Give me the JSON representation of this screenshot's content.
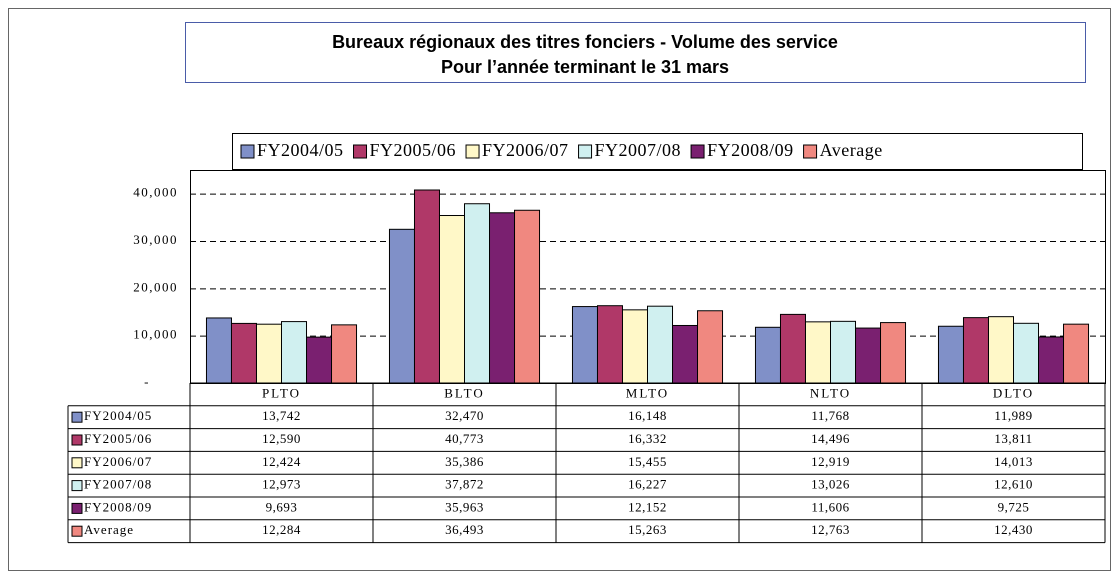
{
  "chart_data": {
    "type": "bar",
    "title": [
      "Bureaux régionaux des titres fonciers - Volume des service",
      "Pour l’année terminant le 31 mars"
    ],
    "categories": [
      "PLTO",
      "BLTO",
      "MLTO",
      "NLTO",
      "DLTO"
    ],
    "series": [
      {
        "name": "FY2004/05",
        "color": "#8090c8",
        "values": [
          13742,
          32470,
          16148,
          11768,
          11989
        ],
        "value_labels": [
          "13,742",
          "32,470",
          "16,148",
          "11,768",
          "11,989"
        ]
      },
      {
        "name": "FY2005/06",
        "color": "#b03868",
        "values": [
          12590,
          40773,
          16332,
          14496,
          13811
        ],
        "value_labels": [
          "12,590",
          "40,773",
          "16,332",
          "14,496",
          "13,811"
        ]
      },
      {
        "name": "FY2006/07",
        "color": "#fff8c8",
        "values": [
          12424,
          35386,
          15455,
          12919,
          14013
        ],
        "value_labels": [
          "12,424",
          "35,386",
          "15,455",
          "12,919",
          "14,013"
        ]
      },
      {
        "name": "FY2007/08",
        "color": "#d0f0f0",
        "values": [
          12973,
          37872,
          16227,
          13026,
          12610
        ],
        "value_labels": [
          "12,973",
          "37,872",
          "16,227",
          "13,026",
          "12,610"
        ]
      },
      {
        "name": "FY2008/09",
        "color": "#7a2070",
        "values": [
          9693,
          35963,
          12152,
          11606,
          9725
        ],
        "value_labels": [
          "9,693",
          "35,963",
          "12,152",
          "11,606",
          "9,725"
        ]
      },
      {
        "name": "Average",
        "color": "#f08880",
        "values": [
          12284,
          36493,
          15263,
          12763,
          12430
        ],
        "value_labels": [
          "12,284",
          "36,493",
          "15,263",
          "12,763",
          "12,430"
        ]
      }
    ],
    "ylim": [
      0,
      45000
    ],
    "yticks": [
      {
        "value": 0,
        "label": "-"
      },
      {
        "value": 10000,
        "label": "10,000"
      },
      {
        "value": 20000,
        "label": "20,000"
      },
      {
        "value": 30000,
        "label": "30,000"
      },
      {
        "value": 40000,
        "label": "40,000"
      }
    ],
    "grid": true,
    "legend": "top"
  }
}
